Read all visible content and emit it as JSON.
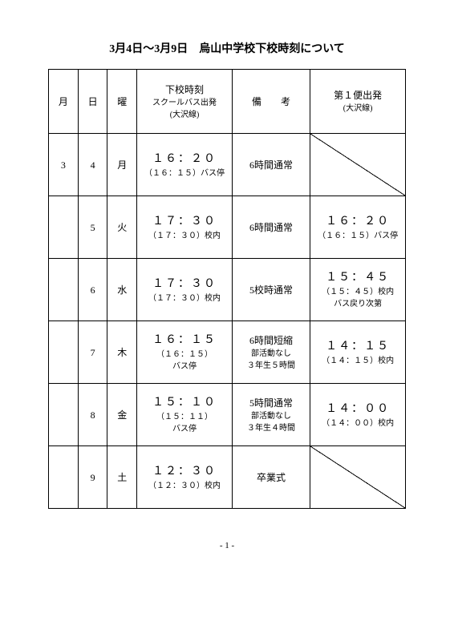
{
  "title": "3月4日～3月9日　烏山中学校下校時刻について",
  "page_number": "- 1 -",
  "headers": {
    "month": "月",
    "day": "日",
    "weekday": "曜",
    "time_main": "下校時刻",
    "time_sub1": "スクールバス出発",
    "time_sub2": "(大沢線)",
    "note_main": "備　　考",
    "first_main": "第１便出発",
    "first_sub": "(大沢線)"
  },
  "rows": [
    {
      "month": "3",
      "day": "4",
      "weekday": "月",
      "time_big": "１６：２０",
      "time_sub": "（１６：１５）バス停",
      "note_big": "6時間通常",
      "note_sub1": "",
      "note_sub2": "",
      "first_big": "",
      "first_sub": "",
      "first_sub2": "",
      "first_diag": true
    },
    {
      "month": "",
      "day": "5",
      "weekday": "火",
      "time_big": "１７：３０",
      "time_sub": "（１７：３０）校内",
      "note_big": "6時間通常",
      "note_sub1": "",
      "note_sub2": "",
      "first_big": "１６：２０",
      "first_sub": "（１６：１５）バス停",
      "first_sub2": "",
      "first_diag": false
    },
    {
      "month": "",
      "day": "6",
      "weekday": "水",
      "time_big": "１７：３０",
      "time_sub": "（１７：３０）校内",
      "note_big": "5校時通常",
      "note_sub1": "",
      "note_sub2": "",
      "first_big": "１５：４５",
      "first_sub": "（１５：４５）校内",
      "first_sub2": "バス戻り次第",
      "first_diag": false
    },
    {
      "month": "",
      "day": "7",
      "weekday": "木",
      "time_big": "１６：１５",
      "time_sub": "（１６：１５）",
      "time_sub2": "バス停",
      "note_big": "6時間短縮",
      "note_sub1": "部活動なし",
      "note_sub2": "３年生５時間",
      "first_big": "１４：１５",
      "first_sub": "（１４：１５）校内",
      "first_sub2": "",
      "first_diag": false
    },
    {
      "month": "",
      "day": "8",
      "weekday": "金",
      "time_big": "１５：１０",
      "time_sub": "（１５：１１）",
      "time_sub2": "バス停",
      "note_big": "5時間通常",
      "note_sub1": "部活動なし",
      "note_sub2": "３年生４時間",
      "first_big": "１４：００",
      "first_sub": "（１４：００）校内",
      "first_sub2": "",
      "first_diag": false
    },
    {
      "month": "",
      "day": "9",
      "weekday": "土",
      "time_big": "１２：３０",
      "time_sub": "（１２：３０）校内",
      "note_big": "卒業式",
      "note_sub1": "",
      "note_sub2": "",
      "first_big": "",
      "first_sub": "",
      "first_sub2": "",
      "first_diag": true
    }
  ]
}
